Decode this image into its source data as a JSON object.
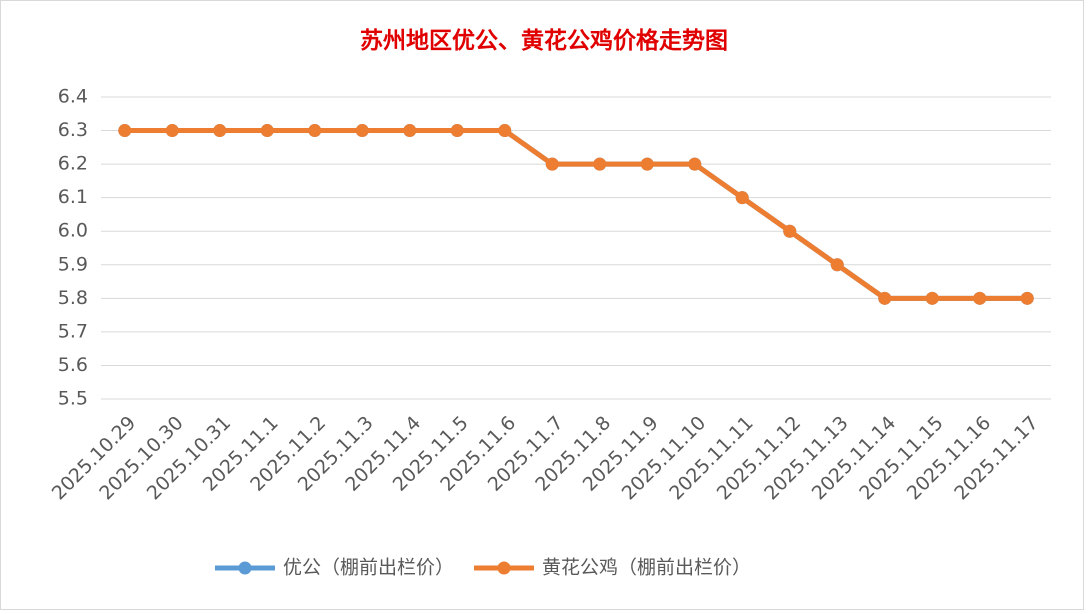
{
  "chart_data": {
    "type": "line",
    "title": "苏州地区优公、黄花公鸡价格走势图",
    "categories": [
      "2025.10.29",
      "2025.10.30",
      "2025.10.31",
      "2025.11.1",
      "2025.11.2",
      "2025.11.3",
      "2025.11.4",
      "2025.11.5",
      "2025.11.6",
      "2025.11.7",
      "2025.11.8",
      "2025.11.9",
      "2025.11.10",
      "2025.11.11",
      "2025.11.12",
      "2025.11.13",
      "2025.11.14",
      "2025.11.15",
      "2025.11.16",
      "2025.11.17"
    ],
    "series": [
      {
        "name": "优公（棚前出栏价）",
        "color": "#5b9bd5",
        "values": [
          6.3,
          6.3,
          6.3,
          6.3,
          6.3,
          6.3,
          6.3,
          6.3,
          6.3,
          6.2,
          6.2,
          6.2,
          6.2,
          6.1,
          6.0,
          5.9,
          5.8,
          5.8,
          5.8,
          5.8
        ]
      },
      {
        "name": "黄花公鸡（棚前出栏价）",
        "color": "#ed7d31",
        "values": [
          6.3,
          6.3,
          6.3,
          6.3,
          6.3,
          6.3,
          6.3,
          6.3,
          6.3,
          6.2,
          6.2,
          6.2,
          6.2,
          6.1,
          6.0,
          5.9,
          5.8,
          5.8,
          5.8,
          5.8
        ]
      }
    ],
    "ylim": [
      5.5,
      6.4
    ],
    "yticks": [
      5.5,
      5.6,
      5.7,
      5.8,
      5.9,
      {
        "value": 6,
        "label": "6.0"
      },
      6.1,
      6.2,
      6.3,
      6.4
    ],
    "grid": true,
    "legend": "bottom"
  }
}
